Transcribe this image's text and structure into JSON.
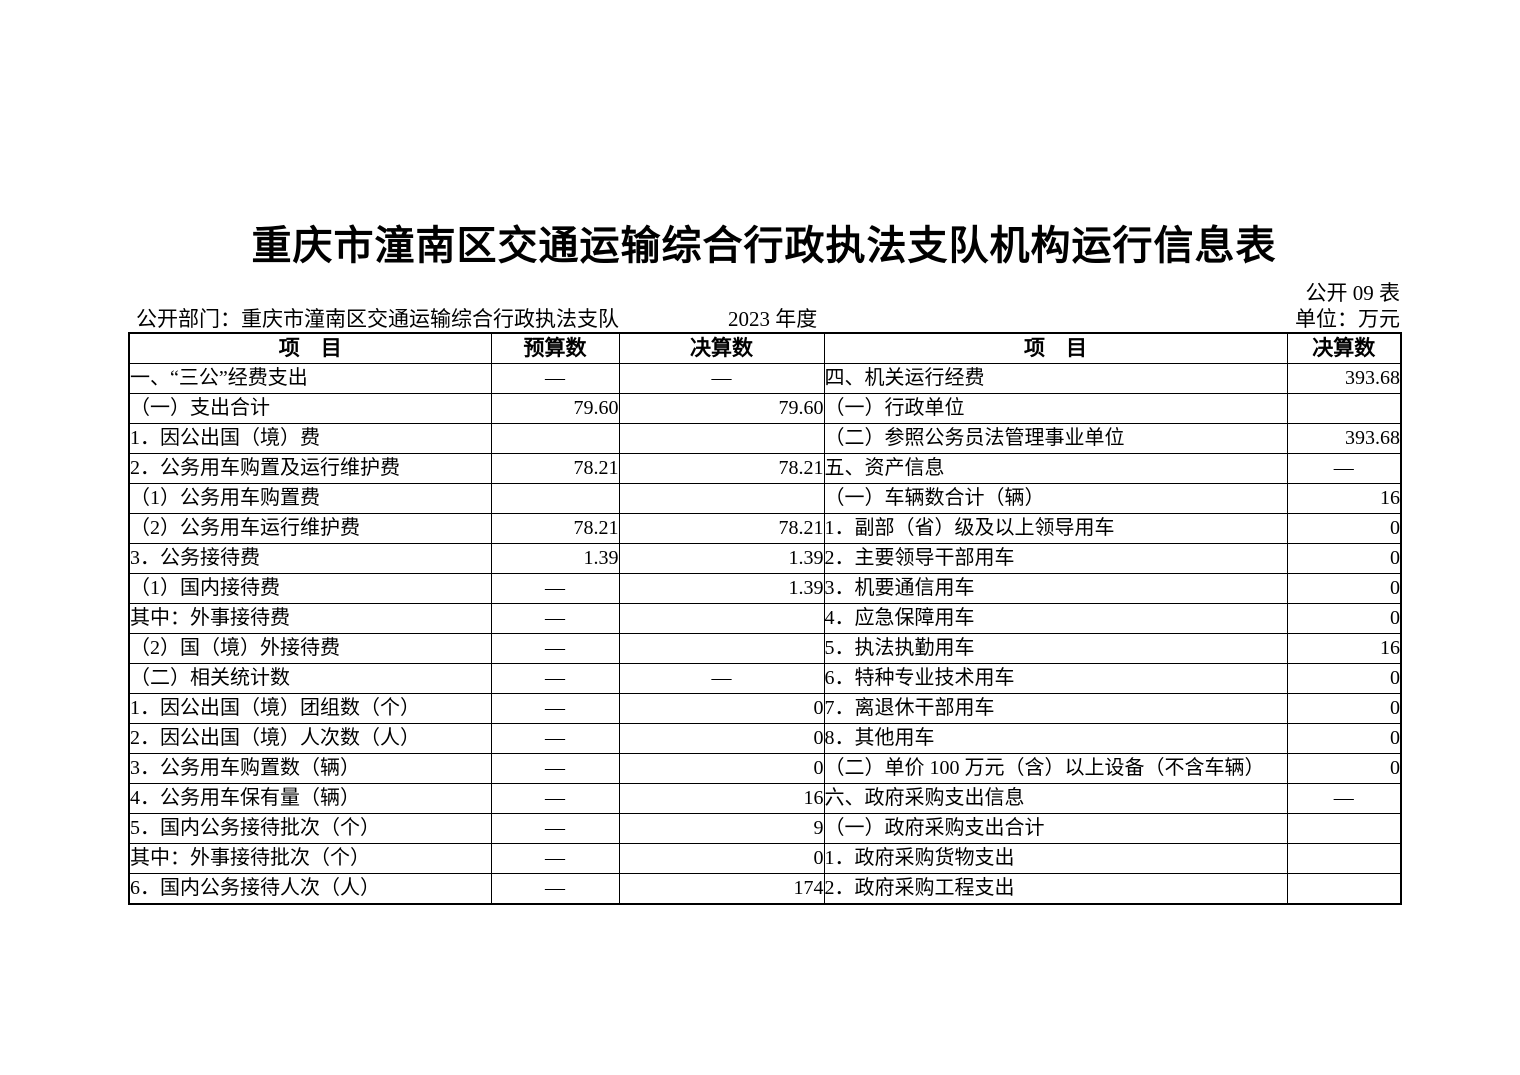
{
  "page": {
    "title": "重庆市潼南区交通运输综合行政执法支队机构运行信息表",
    "table_code": "公开 09 表",
    "department": "公开部门：重庆市潼南区交通运输综合行政执法支队",
    "year": "2023 年度",
    "unit": "单位：万元"
  },
  "table": {
    "headers": {
      "item_left": "项　目",
      "budget": "预算数",
      "final_left": "决算数",
      "item_right": "项　目",
      "final_right": "决算数"
    },
    "left_rows": [
      {
        "item": "一、“三公”经费支出",
        "indent": 1,
        "budget": "—",
        "final": "—"
      },
      {
        "item": "（一）支出合计",
        "indent": 2,
        "budget": "79.60",
        "final": "79.60"
      },
      {
        "item": "1．因公出国（境）费",
        "indent": 3,
        "budget": "",
        "final": ""
      },
      {
        "item": "2．公务用车购置及运行维护费",
        "indent": 3,
        "budget": "78.21",
        "final": "78.21"
      },
      {
        "item": "（1）公务用车购置费",
        "indent": 4,
        "budget": "",
        "final": ""
      },
      {
        "item": "（2）公务用车运行维护费",
        "indent": 4,
        "budget": "78.21",
        "final": "78.21"
      },
      {
        "item": "3．公务接待费",
        "indent": 3,
        "budget": "1.39",
        "final": "1.39"
      },
      {
        "item": "（1）国内接待费",
        "indent": 4,
        "budget": "—",
        "final": "1.39"
      },
      {
        "item": "其中：外事接待费",
        "indent": 5,
        "budget": "—",
        "final": ""
      },
      {
        "item": "（2）国（境）外接待费",
        "indent": 4,
        "budget": "—",
        "final": ""
      },
      {
        "item": "（二）相关统计数",
        "indent": 2,
        "budget": "—",
        "final": "—"
      },
      {
        "item": "1．因公出国（境）团组数（个）",
        "indent": 3,
        "budget": "—",
        "final": "0"
      },
      {
        "item": "2．因公出国（境）人次数（人）",
        "indent": 3,
        "budget": "—",
        "final": "0"
      },
      {
        "item": "3．公务用车购置数（辆）",
        "indent": 3,
        "budget": "—",
        "final": "0"
      },
      {
        "item": "4．公务用车保有量（辆）",
        "indent": 3,
        "budget": "—",
        "final": "16"
      },
      {
        "item": "5．国内公务接待批次（个）",
        "indent": 3,
        "budget": "—",
        "final": "9"
      },
      {
        "item": "其中：外事接待批次（个）",
        "indent": 5,
        "budget": "—",
        "final": "0"
      },
      {
        "item": "6．国内公务接待人次（人）",
        "indent": 3,
        "budget": "—",
        "final": "174"
      }
    ],
    "right_rows": [
      {
        "item": "四、机关运行经费",
        "indent": 1,
        "final": "393.68"
      },
      {
        "item": "（一）行政单位",
        "indent": 2,
        "final": ""
      },
      {
        "item": "（二）参照公务员法管理事业单位",
        "indent": 2,
        "final": "393.68"
      },
      {
        "item": "五、资产信息",
        "indent": 1,
        "final": "—"
      },
      {
        "item": "（一）车辆数合计（辆）",
        "indent": 2,
        "final": "16"
      },
      {
        "item": "1．副部（省）级及以上领导用车",
        "indent": 3,
        "final": "0"
      },
      {
        "item": "2．主要领导干部用车",
        "indent": 3,
        "final": "0"
      },
      {
        "item": "3．机要通信用车",
        "indent": 3,
        "final": "0"
      },
      {
        "item": "4．应急保障用车",
        "indent": 3,
        "final": "0"
      },
      {
        "item": "5．执法执勤用车",
        "indent": 3,
        "final": "16"
      },
      {
        "item": "6．特种专业技术用车",
        "indent": 3,
        "final": "0"
      },
      {
        "item": "7．离退休干部用车",
        "indent": 3,
        "final": "0"
      },
      {
        "item": "8．其他用车",
        "indent": 3,
        "final": "0"
      },
      {
        "item": "（二）单价 100 万元（含）以上设备（不含车辆）",
        "indent": 2,
        "final": "0"
      },
      {
        "item": "六、政府采购支出信息",
        "indent": 1,
        "final": "—"
      },
      {
        "item": "（一）政府采购支出合计",
        "indent": 2,
        "final": ""
      },
      {
        "item": "1．政府采购货物支出",
        "indent": 3,
        "final": ""
      },
      {
        "item": "2．政府采购工程支出",
        "indent": 3,
        "final": ""
      }
    ]
  }
}
